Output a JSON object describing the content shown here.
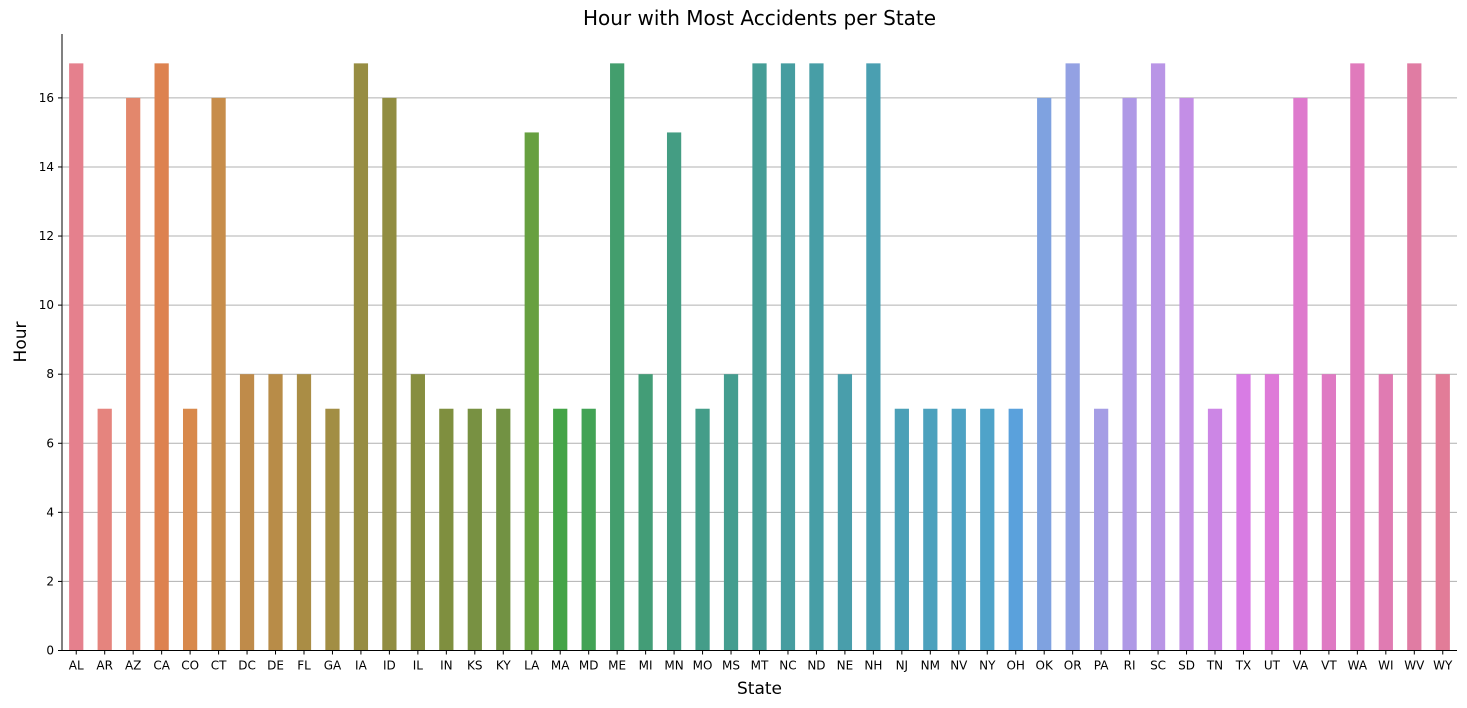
{
  "chart_data": {
    "type": "bar",
    "title": "Hour with Most Accidents per State",
    "xlabel": "State",
    "ylabel": "Hour",
    "ylim": [
      0,
      17.85
    ],
    "yticks": [
      0,
      2,
      4,
      6,
      8,
      10,
      12,
      14,
      16
    ],
    "grid": "y-major",
    "legend": "none",
    "categories": [
      "AL",
      "AR",
      "AZ",
      "CA",
      "CO",
      "CT",
      "DC",
      "DE",
      "FL",
      "GA",
      "IA",
      "ID",
      "IL",
      "IN",
      "KS",
      "KY",
      "LA",
      "MA",
      "MD",
      "ME",
      "MI",
      "MN",
      "MO",
      "MS",
      "MT",
      "NC",
      "ND",
      "NE",
      "NH",
      "NJ",
      "NM",
      "NV",
      "NY",
      "OH",
      "OK",
      "OR",
      "PA",
      "RI",
      "SC",
      "SD",
      "TN",
      "TX",
      "UT",
      "VA",
      "VT",
      "WA",
      "WI",
      "WV",
      "WY"
    ],
    "values": [
      17,
      7,
      16,
      17,
      7,
      16,
      8,
      8,
      8,
      7,
      17,
      16,
      8,
      7,
      7,
      7,
      15,
      7,
      7,
      17,
      8,
      15,
      7,
      8,
      17,
      17,
      17,
      8,
      17,
      7,
      7,
      7,
      7,
      7,
      16,
      17,
      7,
      16,
      17,
      16,
      7,
      8,
      8,
      16,
      8,
      17,
      8,
      17,
      8
    ],
    "colors": [
      "#e5808d",
      "#e5847e",
      "#e3876c",
      "#dd824f",
      "#d8894c",
      "#c78d4b",
      "#bf8b4a",
      "#b88c48",
      "#aa8d45",
      "#a28e44",
      "#978d42",
      "#918d41",
      "#878e40",
      "#7f8f3f",
      "#789142",
      "#729243",
      "#67a040",
      "#43a446",
      "#42a355",
      "#439e6d",
      "#439d77",
      "#449d83",
      "#449d89",
      "#449d8f",
      "#459d96",
      "#469da0",
      "#479ea6",
      "#499eab",
      "#4a9fb1",
      "#4ba0b7",
      "#4ca1bd",
      "#4da2c3",
      "#4fa3c9",
      "#5aa1dc",
      "#7fa2e0",
      "#93a1e3",
      "#a59de5",
      "#af99e6",
      "#b995e6",
      "#c38ee6",
      "#cc86e5",
      "#d87ce4",
      "#de7ad8",
      "#de7acd",
      "#df7ac3",
      "#e07abc",
      "#e07bb2",
      "#e07ca3",
      "#e27c98"
    ]
  }
}
